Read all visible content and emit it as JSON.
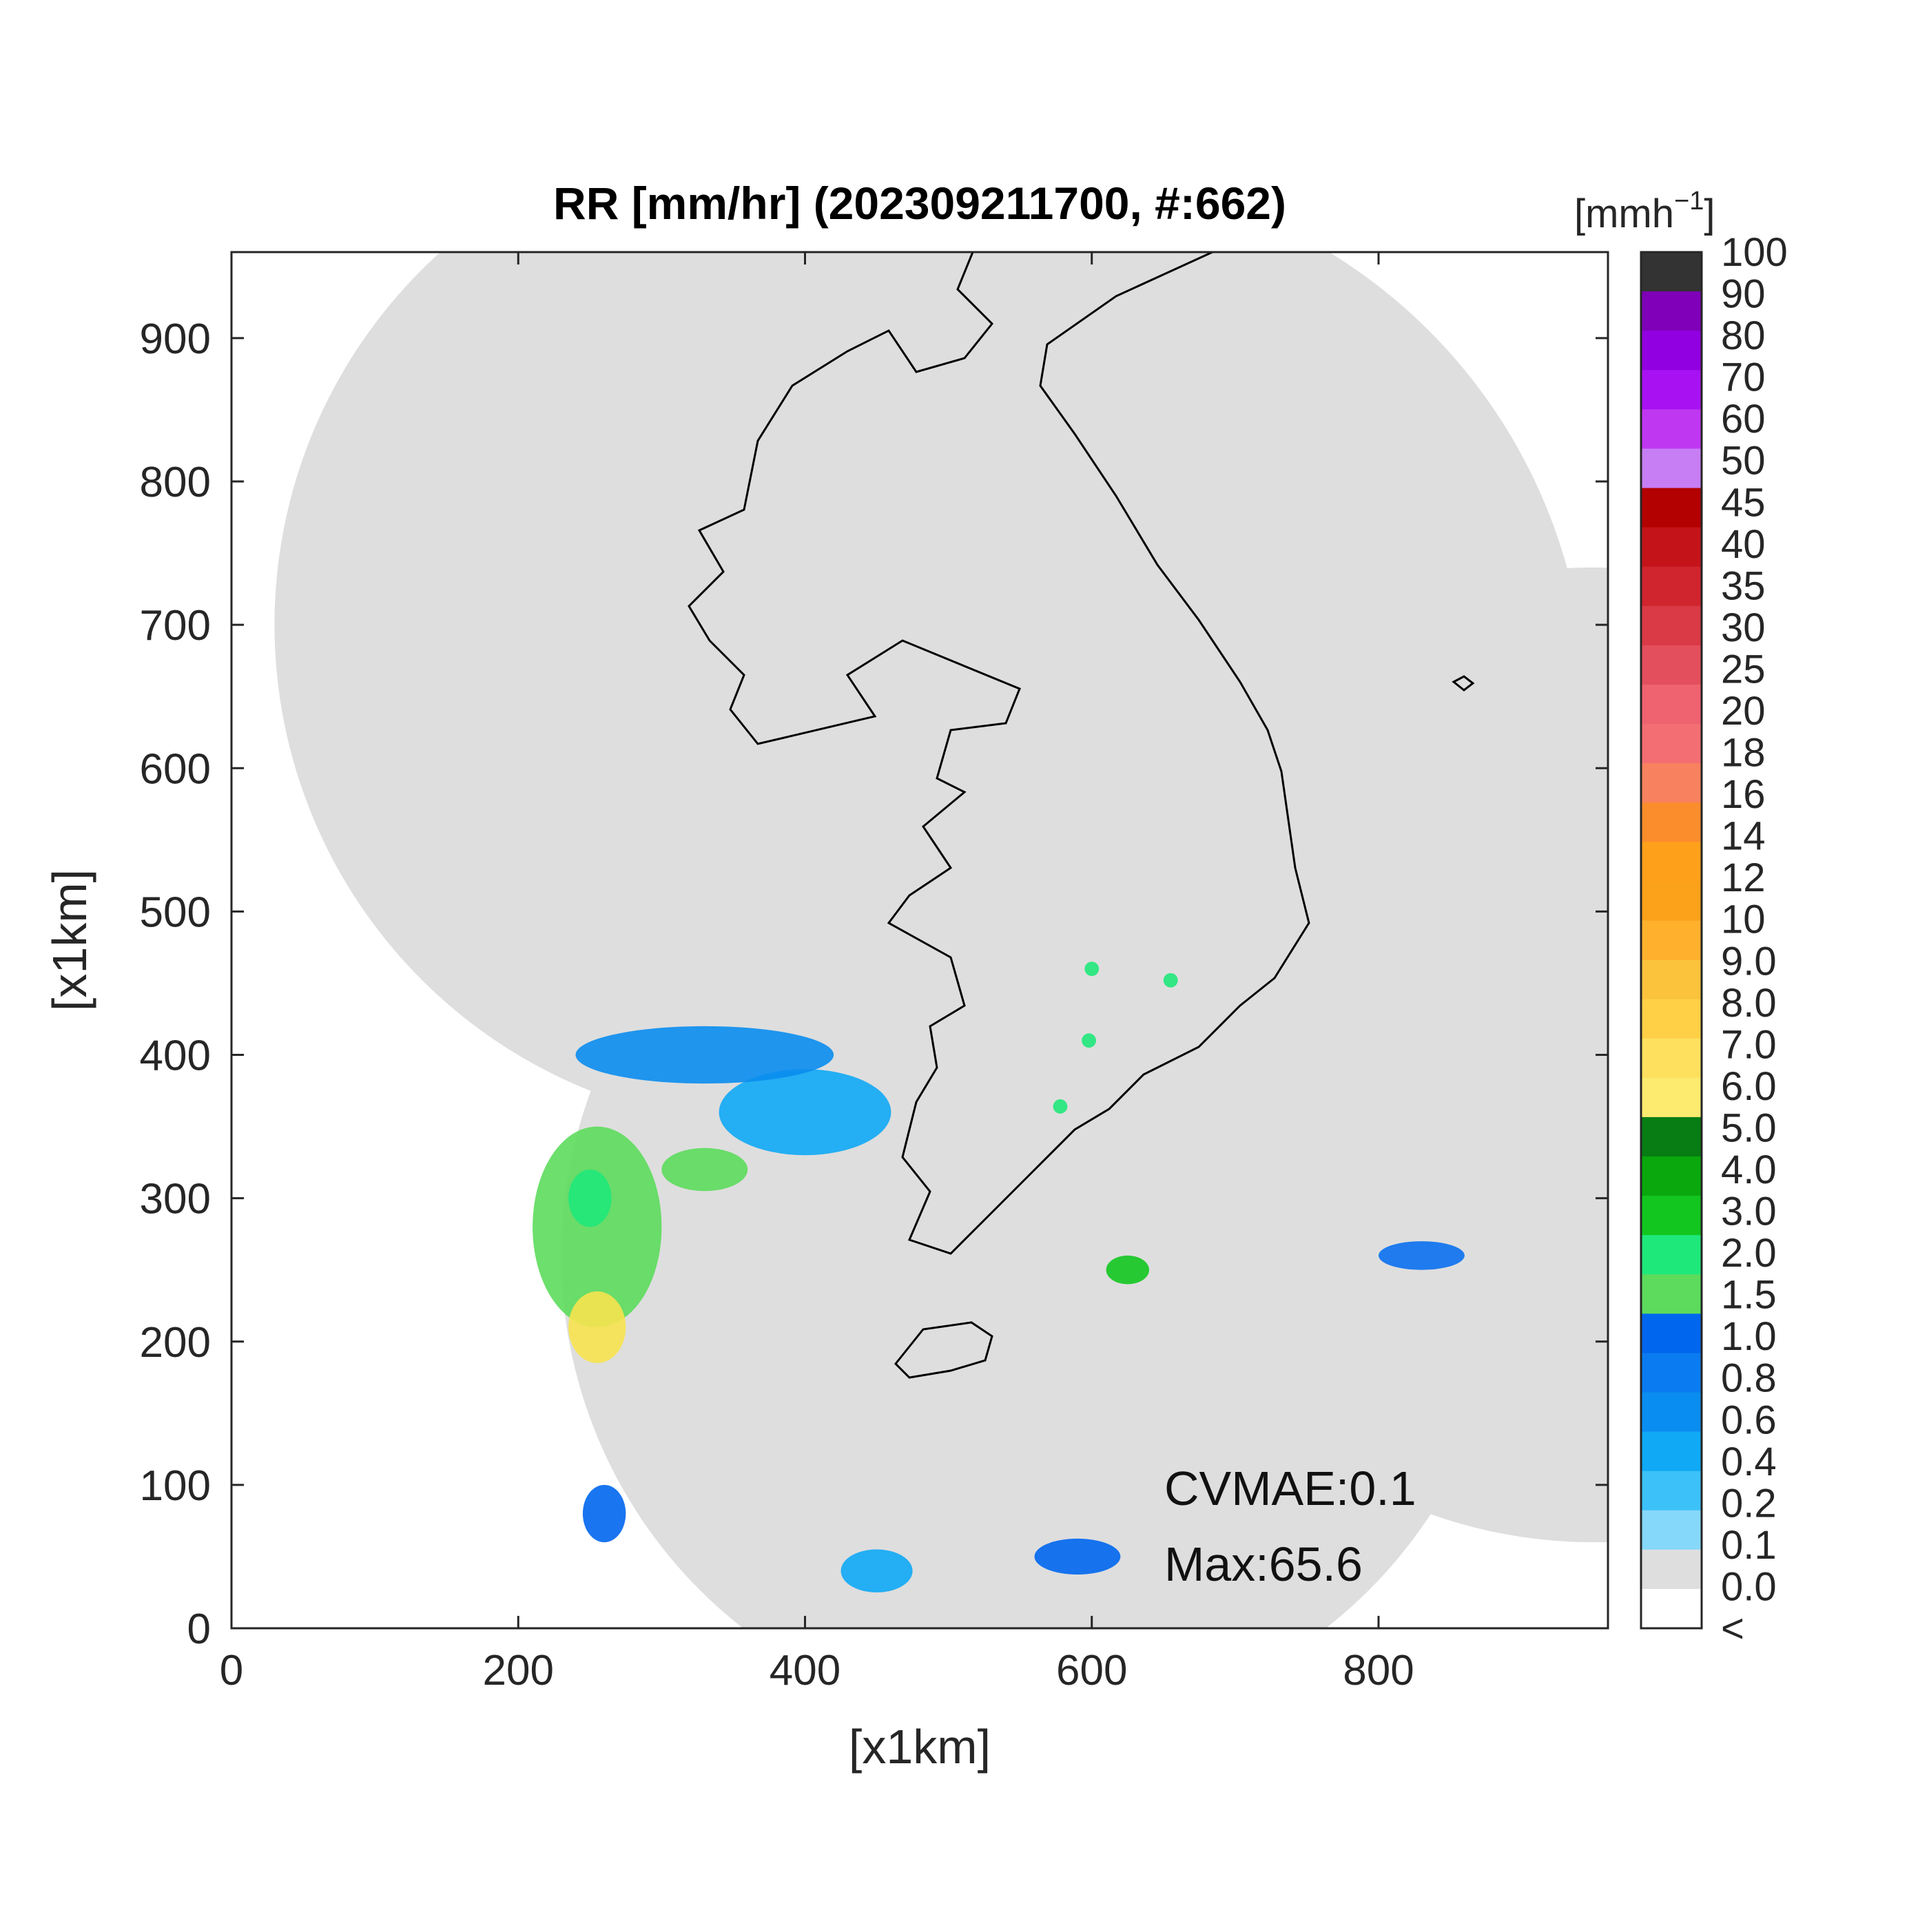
{
  "chart_data": {
    "type": "heatmap",
    "title": "RR [mm/hr] (202309211700, #:662)",
    "xlabel": "[x1km]",
    "ylabel": "[x1km]",
    "xlim": [
      0,
      960
    ],
    "ylim": [
      0,
      960
    ],
    "xticks": [
      0,
      200,
      400,
      600,
      800
    ],
    "yticks": [
      0,
      100,
      200,
      300,
      400,
      500,
      600,
      700,
      800,
      900
    ],
    "radar_coverage_km": [
      {
        "cx": 380,
        "cy": 700,
        "r": 350
      },
      {
        "cx": 570,
        "cy": 640,
        "r": 375
      },
      {
        "cx": 950,
        "cy": 400,
        "r": 340
      },
      {
        "cx": 560,
        "cy": 260,
        "r": 330
      }
    ],
    "rain_cells_km": [
      {
        "x": 255,
        "y": 280,
        "w": 90,
        "h": 140,
        "class": "1.5",
        "color": "#5CDB5C"
      },
      {
        "x": 255,
        "y": 210,
        "w": 40,
        "h": 50,
        "class": "5.0",
        "color": "#F7E34F"
      },
      {
        "x": 250,
        "y": 300,
        "w": 30,
        "h": 40,
        "class": "2.0",
        "color": "#1FE87A"
      },
      {
        "x": 330,
        "y": 320,
        "w": 60,
        "h": 30,
        "class": "1.5",
        "color": "#5CDB5C"
      },
      {
        "x": 400,
        "y": 360,
        "w": 120,
        "h": 60,
        "class": "0.4",
        "color": "#0FA9F5"
      },
      {
        "x": 330,
        "y": 400,
        "w": 180,
        "h": 40,
        "class": "0.6",
        "color": "#0A8DF0"
      },
      {
        "x": 600,
        "y": 460,
        "w": 10,
        "h": 10,
        "class": "2.0",
        "color": "#1FE87A"
      },
      {
        "x": 655,
        "y": 452,
        "w": 10,
        "h": 10,
        "class": "2.0",
        "color": "#1FE87A"
      },
      {
        "x": 598,
        "y": 410,
        "w": 10,
        "h": 10,
        "class": "2.0",
        "color": "#1FE87A"
      },
      {
        "x": 578,
        "y": 364,
        "w": 10,
        "h": 10,
        "class": "2.0",
        "color": "#1FE87A"
      },
      {
        "x": 625,
        "y": 250,
        "w": 30,
        "h": 20,
        "class": "3.0",
        "color": "#12C61F"
      },
      {
        "x": 830,
        "y": 260,
        "w": 60,
        "h": 20,
        "class": "0.8",
        "color": "#0A70F0"
      },
      {
        "x": 590,
        "y": 50,
        "w": 60,
        "h": 25,
        "class": "1.0",
        "color": "#0066EE"
      },
      {
        "x": 450,
        "y": 40,
        "w": 50,
        "h": 30,
        "class": "0.4",
        "color": "#0FA9F5"
      },
      {
        "x": 260,
        "y": 80,
        "w": 30,
        "h": 40,
        "class": "1.0",
        "color": "#0066EE"
      }
    ],
    "colorbar": {
      "unit_label": "[mmh",
      "unit_exponent": "−1",
      "unit_close": "]",
      "labels": [
        "100",
        "90",
        "80",
        "70",
        "60",
        "50",
        "45",
        "40",
        "35",
        "30",
        "25",
        "20",
        "18",
        "16",
        "14",
        "12",
        "10",
        "9.0",
        "8.0",
        "7.0",
        "6.0",
        "5.0",
        "4.0",
        "3.0",
        "2.0",
        "1.5",
        "1.0",
        "0.8",
        "0.6",
        "0.4",
        "0.2",
        "0.1",
        "0.0",
        "<"
      ],
      "colors": [
        "#333333",
        "#7F00B8",
        "#9100E0",
        "#A812F2",
        "#C037F2",
        "#C77EF5",
        "#B30000",
        "#C4141A",
        "#D0252E",
        "#D93A45",
        "#E34F5C",
        "#EF6270",
        "#F26E73",
        "#F8825F",
        "#FB8D2D",
        "#FFA01A",
        "#FBA11A",
        "#FFB02D",
        "#FBC23C",
        "#FFD045",
        "#FEE05E",
        "#FDEB6F",
        "#077D13",
        "#0AA80D",
        "#12C61F",
        "#1FE87A",
        "#5CDB5C",
        "#0066EE",
        "#0A7BF0",
        "#0A8DF0",
        "#0FA9F5",
        "#3CC2F8",
        "#86D8FA",
        "#DEDEDE",
        "#FFFFFF"
      ]
    },
    "annotations": [
      "CVMAE:0.1",
      "Max:65.6"
    ],
    "grid": false
  }
}
